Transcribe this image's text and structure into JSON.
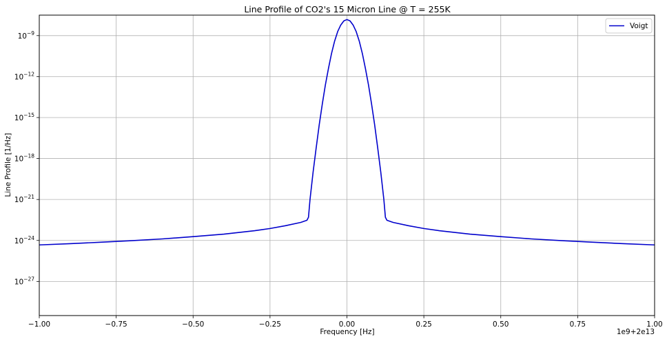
{
  "chart_data": {
    "type": "line",
    "title": "Line Profile of CO2's 15 Micron Line @ T = 255K",
    "xlabel": "Frequency [Hz]",
    "ylabel": "Line Profile [1/Hz]",
    "x_offset_label": "1e9+2e13",
    "xlim": [
      -1.0,
      1.0
    ],
    "ylog": true,
    "ylim_exp": [
      -29.5,
      -7.5
    ],
    "grid": true,
    "legend_position": "upper right",
    "xticks": [
      {
        "value": -1.0,
        "label": "−1.00"
      },
      {
        "value": -0.75,
        "label": "−0.75"
      },
      {
        "value": -0.5,
        "label": "−0.50"
      },
      {
        "value": -0.25,
        "label": "−0.25"
      },
      {
        "value": 0.0,
        "label": "0.00"
      },
      {
        "value": 0.25,
        "label": "0.25"
      },
      {
        "value": 0.5,
        "label": "0.50"
      },
      {
        "value": 0.75,
        "label": "0.75"
      },
      {
        "value": 1.0,
        "label": "1.00"
      }
    ],
    "yticks": [
      {
        "exp": -9,
        "base": "10",
        "sup": "−9"
      },
      {
        "exp": -12,
        "base": "10",
        "sup": "−12"
      },
      {
        "exp": -15,
        "base": "10",
        "sup": "−15"
      },
      {
        "exp": -18,
        "base": "10",
        "sup": "−18"
      },
      {
        "exp": -21,
        "base": "10",
        "sup": "−21"
      },
      {
        "exp": -24,
        "base": "10",
        "sup": "−24"
      },
      {
        "exp": -27,
        "base": "10",
        "sup": "−27"
      }
    ],
    "series": [
      {
        "name": "Voigt",
        "color": "#0000cc",
        "x": [
          -1.0,
          -0.9,
          -0.8,
          -0.7,
          -0.6,
          -0.5,
          -0.4,
          -0.3,
          -0.25,
          -0.2,
          -0.15,
          -0.13,
          -0.125,
          -0.12,
          -0.11,
          -0.1,
          -0.09,
          -0.08,
          -0.07,
          -0.06,
          -0.05,
          -0.04,
          -0.03,
          -0.02,
          -0.01,
          0.0,
          0.01,
          0.02,
          0.03,
          0.04,
          0.05,
          0.06,
          0.07,
          0.08,
          0.09,
          0.1,
          0.11,
          0.12,
          0.125,
          0.13,
          0.15,
          0.2,
          0.25,
          0.3,
          0.4,
          0.5,
          0.6,
          0.7,
          0.8,
          0.9,
          1.0
        ],
        "y": [
          4.7e-25,
          5.8e-25,
          7.4e-25,
          9.6e-25,
          1.3e-24,
          1.9e-24,
          2.9e-24,
          5.2e-24,
          7.5e-24,
          1.2e-23,
          2.1e-23,
          3e-23,
          5e-23,
          1e-21,
          1e-19,
          6e-18,
          3e-16,
          1e-14,
          2.5e-13,
          4e-12,
          5e-11,
          4e-10,
          2e-09,
          6e-09,
          1.2e-08,
          1.5e-08,
          1.2e-08,
          6e-09,
          2e-09,
          4e-10,
          5e-11,
          4e-12,
          2.5e-13,
          1e-14,
          3e-16,
          6e-18,
          1e-19,
          1e-21,
          5e-23,
          3e-23,
          2.1e-23,
          1.2e-23,
          7.5e-24,
          5.2e-24,
          2.9e-24,
          1.9e-24,
          1.3e-24,
          9.6e-25,
          7.4e-25,
          5.8e-25,
          4.7e-25
        ]
      }
    ]
  }
}
